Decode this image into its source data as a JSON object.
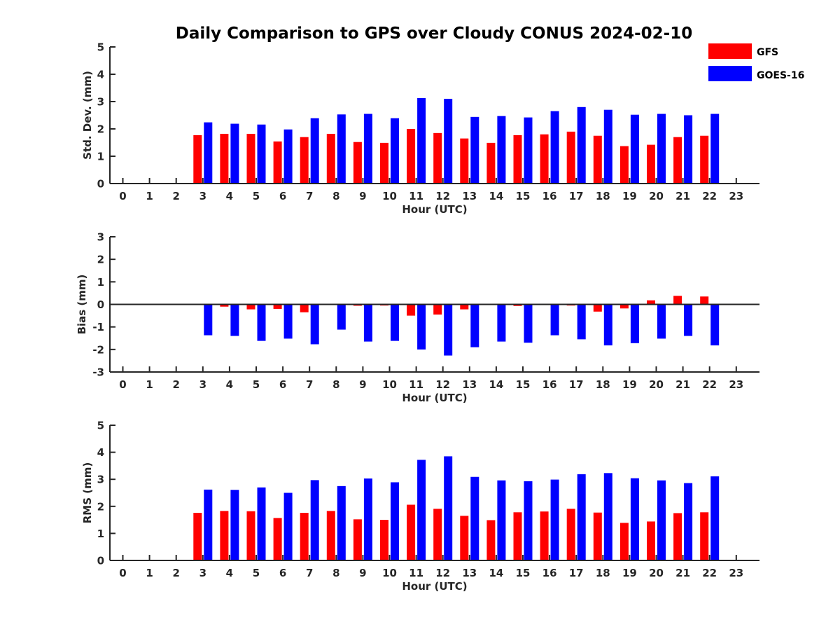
{
  "title": "Daily Comparison to GPS over Cloudy CONUS 2024-02-10",
  "legend": {
    "placement": "top-right",
    "items": [
      {
        "label": "GFS",
        "color": "#ff0000"
      },
      {
        "label": "GOES-16",
        "color": "#0000ff"
      }
    ]
  },
  "chart_data": [
    {
      "type": "bar",
      "xlabel": "Hour (UTC)",
      "ylabel": "Std. Dev. (mm)",
      "ylim": [
        0,
        5
      ],
      "yticks": [
        0,
        1,
        2,
        3,
        4,
        5
      ],
      "xticks": [
        0,
        1,
        2,
        3,
        4,
        5,
        6,
        7,
        8,
        9,
        10,
        11,
        12,
        13,
        14,
        15,
        16,
        17,
        18,
        19,
        20,
        21,
        22,
        23
      ],
      "categories": [
        3,
        4,
        5,
        6,
        7,
        8,
        9,
        10,
        11,
        12,
        13,
        14,
        15,
        16,
        17,
        18,
        19,
        20,
        21,
        22
      ],
      "series": [
        {
          "name": "GFS",
          "color": "#ff0000",
          "values": [
            1.77,
            1.82,
            1.82,
            1.54,
            1.7,
            1.82,
            1.52,
            1.49,
            2.0,
            1.85,
            1.65,
            1.49,
            1.77,
            1.8,
            1.9,
            1.75,
            1.37,
            1.42,
            1.7,
            1.75
          ]
        },
        {
          "name": "GOES-16",
          "color": "#0000ff",
          "values": [
            2.24,
            2.19,
            2.16,
            1.98,
            2.39,
            2.53,
            2.55,
            2.39,
            3.13,
            3.1,
            2.44,
            2.47,
            2.42,
            2.65,
            2.8,
            2.7,
            2.52,
            2.55,
            2.5,
            2.55
          ]
        }
      ]
    },
    {
      "type": "bar",
      "xlabel": "Hour (UTC)",
      "ylabel": "Bias (mm)",
      "ylim": [
        -3,
        3
      ],
      "yticks": [
        -3,
        -2,
        -1,
        0,
        1,
        2,
        3
      ],
      "xticks": [
        0,
        1,
        2,
        3,
        4,
        5,
        6,
        7,
        8,
        9,
        10,
        11,
        12,
        13,
        14,
        15,
        16,
        17,
        18,
        19,
        20,
        21,
        22,
        23
      ],
      "categories": [
        3,
        4,
        5,
        6,
        7,
        8,
        9,
        10,
        11,
        12,
        13,
        14,
        15,
        16,
        17,
        18,
        19,
        20,
        21,
        22
      ],
      "series": [
        {
          "name": "GFS",
          "color": "#ff0000",
          "values": [
            -0.03,
            -0.1,
            -0.22,
            -0.2,
            -0.35,
            0.02,
            -0.06,
            -0.05,
            -0.5,
            -0.45,
            -0.22,
            -0.02,
            -0.07,
            0.02,
            -0.05,
            -0.32,
            -0.18,
            0.18,
            0.38,
            0.35
          ]
        },
        {
          "name": "GOES-16",
          "color": "#0000ff",
          "values": [
            -1.37,
            -1.4,
            -1.62,
            -1.52,
            -1.77,
            -1.12,
            -1.65,
            -1.62,
            -2.0,
            -2.27,
            -1.9,
            -1.65,
            -1.7,
            -1.37,
            -1.55,
            -1.82,
            -1.72,
            -1.52,
            -1.4,
            -1.82
          ]
        }
      ]
    },
    {
      "type": "bar",
      "xlabel": "Hour (UTC)",
      "ylabel": "RMS (mm)",
      "ylim": [
        0,
        5
      ],
      "yticks": [
        0,
        1,
        2,
        3,
        4,
        5
      ],
      "xticks": [
        0,
        1,
        2,
        3,
        4,
        5,
        6,
        7,
        8,
        9,
        10,
        11,
        12,
        13,
        14,
        15,
        16,
        17,
        18,
        19,
        20,
        21,
        22,
        23
      ],
      "categories": [
        3,
        4,
        5,
        6,
        7,
        8,
        9,
        10,
        11,
        12,
        13,
        14,
        15,
        16,
        17,
        18,
        19,
        20,
        21,
        22
      ],
      "series": [
        {
          "name": "GFS",
          "color": "#ff0000",
          "values": [
            1.76,
            1.83,
            1.82,
            1.57,
            1.76,
            1.83,
            1.52,
            1.5,
            2.06,
            1.91,
            1.65,
            1.49,
            1.78,
            1.81,
            1.91,
            1.77,
            1.39,
            1.44,
            1.75,
            1.78
          ]
        },
        {
          "name": "GOES-16",
          "color": "#0000ff",
          "values": [
            2.62,
            2.61,
            2.7,
            2.5,
            2.97,
            2.75,
            3.03,
            2.89,
            3.72,
            3.85,
            3.09,
            2.96,
            2.93,
            2.99,
            3.19,
            3.23,
            3.04,
            2.96,
            2.86,
            3.11
          ]
        }
      ]
    }
  ]
}
